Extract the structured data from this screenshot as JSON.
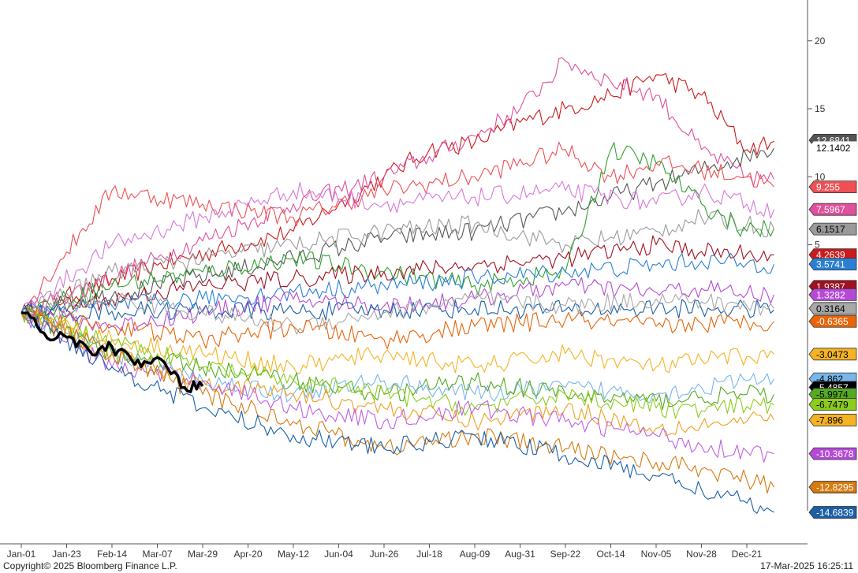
{
  "footer": {
    "copyright": "Copyright© 2025 Bloomberg Finance L.P.",
    "timestamp": "17-Mar-2025 16:25:11"
  },
  "colors": {
    "axis": "#555555",
    "highlight": "#000000"
  },
  "chart_data": {
    "type": "line",
    "title": "",
    "xlabel": "",
    "ylabel": "",
    "ylim": [
      -17,
      23
    ],
    "x_ticks": [
      "Jan-01",
      "Jan-23",
      "Feb-14",
      "Mar-07",
      "Mar-29",
      "Apr-20",
      "May-12",
      "Jun-04",
      "Jun-26",
      "Jul-18",
      "Aug-09",
      "Aug-31",
      "Sep-22",
      "Oct-14",
      "Nov-05",
      "Nov-28",
      "Dec-21"
    ],
    "y_ticks": [
      20,
      15,
      10,
      5
    ],
    "y_axis_side": "right",
    "grid": false,
    "legend": "none",
    "end_labels": [
      {
        "text": "12.6841",
        "value": 12.6841,
        "color": "#555555",
        "text_color": "#ffffff"
      },
      {
        "text": "12.1402",
        "value": 12.1402,
        "color": "#ffffff",
        "text_color": "#000000"
      },
      {
        "text": "9.255",
        "value": 9.255,
        "color": "#ef5055",
        "text_color": "#ffffff"
      },
      {
        "text": "7.5967",
        "value": 7.5967,
        "color": "#e0509c",
        "text_color": "#ffffff"
      },
      {
        "text": "6.1517",
        "value": 6.1517,
        "color": "#9a9a9a",
        "text_color": "#000000"
      },
      {
        "text": "4.2639",
        "value": 4.2639,
        "color": "#cc1a1a",
        "text_color": "#ffffff"
      },
      {
        "text": "3.5741",
        "value": 3.5741,
        "color": "#2a7fd4",
        "text_color": "#ffffff"
      },
      {
        "text": "1.9387",
        "value": 1.9387,
        "color": "#a01020",
        "text_color": "#ffffff"
      },
      {
        "text": "1.3282",
        "value": 1.3282,
        "color": "#b54ad6",
        "text_color": "#ffffff"
      },
      {
        "text": "0.3164",
        "value": 0.3164,
        "color": "#a8a8a8",
        "text_color": "#000000"
      },
      {
        "text": "-0.6365",
        "value": -0.6365,
        "color": "#e8650a",
        "text_color": "#ffffff"
      },
      {
        "text": "-3.0473",
        "value": -3.0473,
        "color": "#f5b324",
        "text_color": "#000000"
      },
      {
        "text": "-4.862",
        "value": -4.862,
        "color": "#78b6ea",
        "text_color": "#000000"
      },
      {
        "text": "-5.4857",
        "value": -5.4857,
        "color": "#000000",
        "text_color": "#ffffff"
      },
      {
        "text": "-5.9974",
        "value": -5.9974,
        "color": "#55aa22",
        "text_color": "#000000"
      },
      {
        "text": "-6.7479",
        "value": -6.7479,
        "color": "#8ccc1c",
        "text_color": "#000000"
      },
      {
        "text": "-7.896",
        "value": -7.896,
        "color": "#f5b324",
        "text_color": "#000000"
      },
      {
        "text": "-10.3678",
        "value": -10.3678,
        "color": "#b54ad6",
        "text_color": "#ffffff"
      },
      {
        "text": "-12.8295",
        "value": -12.8295,
        "color": "#d47a10",
        "text_color": "#ffffff"
      },
      {
        "text": "-14.6839",
        "value": -14.6839,
        "color": "#1a5fa8",
        "text_color": "#ffffff"
      }
    ],
    "series": [
      {
        "color": "#cc1a1a",
        "points": [
          [
            0,
            0
          ],
          [
            3,
            3.5
          ],
          [
            6,
            6
          ],
          [
            7,
            8
          ],
          [
            8,
            10
          ],
          [
            9,
            12
          ],
          [
            10,
            12.5
          ],
          [
            11,
            14
          ],
          [
            12,
            15
          ],
          [
            13,
            16
          ],
          [
            14,
            17.5
          ],
          [
            15,
            16
          ],
          [
            16,
            12
          ],
          [
            16.6,
            12.6
          ]
        ]
      },
      {
        "color": "#e0509c",
        "points": [
          [
            0,
            0
          ],
          [
            3,
            4
          ],
          [
            6,
            8
          ],
          [
            8,
            10
          ],
          [
            9,
            11.5
          ],
          [
            10,
            13
          ],
          [
            11,
            15
          ],
          [
            12,
            18.5
          ],
          [
            13,
            17
          ],
          [
            14,
            16
          ],
          [
            15,
            12
          ],
          [
            16,
            10
          ],
          [
            16.6,
            9.8
          ]
        ]
      },
      {
        "color": "#555555",
        "points": [
          [
            0,
            0
          ],
          [
            3,
            2
          ],
          [
            6,
            4
          ],
          [
            8,
            5.5
          ],
          [
            10,
            6
          ],
          [
            12,
            7.5
          ],
          [
            13,
            8.5
          ],
          [
            14,
            9.5
          ],
          [
            15,
            10.5
          ],
          [
            16,
            11.5
          ],
          [
            16.6,
            12.1
          ]
        ]
      },
      {
        "color": "#ef5055",
        "points": [
          [
            0,
            0
          ],
          [
            2,
            9
          ],
          [
            4,
            8
          ],
          [
            6,
            7
          ],
          [
            8,
            9
          ],
          [
            10,
            10
          ],
          [
            12,
            12
          ],
          [
            13,
            10
          ],
          [
            14,
            11
          ],
          [
            15,
            10.5
          ],
          [
            16,
            10
          ],
          [
            16.6,
            9.25
          ]
        ]
      },
      {
        "color": "#d878d8",
        "points": [
          [
            0,
            0
          ],
          [
            2,
            5
          ],
          [
            4,
            7
          ],
          [
            6,
            9
          ],
          [
            8,
            8
          ],
          [
            10,
            8.5
          ],
          [
            12,
            9
          ],
          [
            14,
            8
          ],
          [
            15,
            9
          ],
          [
            16,
            8
          ],
          [
            16.6,
            7.6
          ]
        ]
      },
      {
        "color": "#9a9a9a",
        "points": [
          [
            0,
            0
          ],
          [
            2,
            3
          ],
          [
            4,
            4
          ],
          [
            6,
            5
          ],
          [
            8,
            6
          ],
          [
            10,
            6.5
          ],
          [
            12,
            5
          ],
          [
            14,
            6
          ],
          [
            15,
            7
          ],
          [
            16,
            6.5
          ],
          [
            16.6,
            6.15
          ]
        ]
      },
      {
        "color": "#30a030",
        "points": [
          [
            0,
            0
          ],
          [
            2,
            2
          ],
          [
            4,
            3
          ],
          [
            6,
            4
          ],
          [
            8,
            3
          ],
          [
            10,
            2
          ],
          [
            12,
            3
          ],
          [
            13,
            12
          ],
          [
            14,
            11
          ],
          [
            15,
            8
          ],
          [
            16,
            6
          ],
          [
            16.6,
            6.2
          ]
        ]
      },
      {
        "color": "#a01020",
        "points": [
          [
            0,
            0
          ],
          [
            2,
            1
          ],
          [
            4,
            2
          ],
          [
            6,
            2.5
          ],
          [
            8,
            3
          ],
          [
            10,
            3.5
          ],
          [
            12,
            4
          ],
          [
            14,
            5
          ],
          [
            15,
            4.5
          ],
          [
            16,
            4.3
          ],
          [
            16.6,
            4.26
          ]
        ]
      },
      {
        "color": "#2a7fd4",
        "points": [
          [
            0,
            0
          ],
          [
            2,
            0.5
          ],
          [
            4,
            1
          ],
          [
            6,
            1.5
          ],
          [
            8,
            2
          ],
          [
            10,
            2.5
          ],
          [
            12,
            3
          ],
          [
            14,
            3.5
          ],
          [
            15,
            3.8
          ],
          [
            16,
            3.6
          ],
          [
            16.6,
            3.57
          ]
        ]
      },
      {
        "color": "#b54ad6",
        "points": [
          [
            0,
            0
          ],
          [
            2,
            -1
          ],
          [
            4,
            0
          ],
          [
            6,
            1
          ],
          [
            8,
            0.5
          ],
          [
            10,
            1
          ],
          [
            12,
            2
          ],
          [
            14,
            1.5
          ],
          [
            15,
            1.8
          ],
          [
            16,
            1.4
          ],
          [
            16.6,
            1.33
          ]
        ]
      },
      {
        "color": "#1a5fa8",
        "points": [
          [
            0,
            0
          ],
          [
            2,
            0.1
          ],
          [
            4,
            0.2
          ],
          [
            6,
            0.1
          ],
          [
            8,
            0.2
          ],
          [
            10,
            0.3
          ],
          [
            12,
            0.2
          ],
          [
            14,
            0.3
          ],
          [
            15,
            0.3
          ],
          [
            16,
            0.25
          ],
          [
            16.6,
            0.2
          ]
        ]
      },
      {
        "color": "#a8a8a8",
        "points": [
          [
            0,
            0
          ],
          [
            2,
            1
          ],
          [
            4,
            0
          ],
          [
            6,
            -1
          ],
          [
            8,
            0
          ],
          [
            10,
            1
          ],
          [
            12,
            0.5
          ],
          [
            14,
            1
          ],
          [
            15,
            0.8
          ],
          [
            16,
            0.5
          ],
          [
            16.6,
            0.32
          ]
        ]
      },
      {
        "color": "#e8650a",
        "points": [
          [
            0,
            0
          ],
          [
            2,
            -1
          ],
          [
            4,
            -2
          ],
          [
            6,
            -1
          ],
          [
            8,
            -2
          ],
          [
            10,
            -1
          ],
          [
            12,
            -0.5
          ],
          [
            14,
            -1
          ],
          [
            15,
            -0.8
          ],
          [
            16,
            -0.7
          ],
          [
            16.6,
            -0.64
          ]
        ]
      },
      {
        "color": "#f5b324",
        "points": [
          [
            0,
            0
          ],
          [
            2,
            -2
          ],
          [
            4,
            -3
          ],
          [
            6,
            -4
          ],
          [
            8,
            -3
          ],
          [
            10,
            -4
          ],
          [
            12,
            -3
          ],
          [
            14,
            -4
          ],
          [
            15,
            -3.5
          ],
          [
            16,
            -3.2
          ],
          [
            16.6,
            -3.05
          ]
        ]
      },
      {
        "color": "#78b6ea",
        "points": [
          [
            0,
            0
          ],
          [
            2,
            -3
          ],
          [
            4,
            -5
          ],
          [
            6,
            -6
          ],
          [
            8,
            -5
          ],
          [
            10,
            -6
          ],
          [
            12,
            -5.5
          ],
          [
            14,
            -6
          ],
          [
            15,
            -5.5
          ],
          [
            16,
            -5
          ],
          [
            16.6,
            -4.86
          ]
        ]
      },
      {
        "color": "#55aa22",
        "points": [
          [
            0,
            0
          ],
          [
            2,
            -3
          ],
          [
            4,
            -4
          ],
          [
            6,
            -5
          ],
          [
            8,
            -6
          ],
          [
            10,
            -5
          ],
          [
            12,
            -6
          ],
          [
            14,
            -6.5
          ],
          [
            15,
            -6.2
          ],
          [
            16,
            -6
          ],
          [
            16.6,
            -6.0
          ]
        ]
      },
      {
        "color": "#8ccc1c",
        "points": [
          [
            0,
            0
          ],
          [
            2,
            -2
          ],
          [
            4,
            -4
          ],
          [
            6,
            -5
          ],
          [
            8,
            -6
          ],
          [
            10,
            -7
          ],
          [
            12,
            -6
          ],
          [
            14,
            -7
          ],
          [
            15,
            -7.2
          ],
          [
            16,
            -6.9
          ],
          [
            16.6,
            -6.75
          ]
        ]
      },
      {
        "color": "#f0a020",
        "points": [
          [
            0,
            0
          ],
          [
            2,
            -3
          ],
          [
            4,
            -5
          ],
          [
            6,
            -6
          ],
          [
            8,
            -7
          ],
          [
            10,
            -8
          ],
          [
            12,
            -7
          ],
          [
            14,
            -8.5
          ],
          [
            15,
            -8.2
          ],
          [
            16,
            -8
          ],
          [
            16.6,
            -7.9
          ]
        ]
      },
      {
        "color": "#c060e0",
        "points": [
          [
            0,
            0
          ],
          [
            2,
            -4
          ],
          [
            4,
            -5
          ],
          [
            6,
            -7
          ],
          [
            8,
            -8
          ],
          [
            10,
            -7
          ],
          [
            12,
            -8
          ],
          [
            14,
            -9
          ],
          [
            15,
            -9.8
          ],
          [
            16,
            -10.2
          ],
          [
            16.6,
            -10.37
          ]
        ]
      },
      {
        "color": "#d47a10",
        "points": [
          [
            0,
            0
          ],
          [
            2,
            -3
          ],
          [
            4,
            -6
          ],
          [
            6,
            -8
          ],
          [
            8,
            -10
          ],
          [
            10,
            -9
          ],
          [
            12,
            -10
          ],
          [
            14,
            -11
          ],
          [
            15,
            -11.5
          ],
          [
            16,
            -12.3
          ],
          [
            16.6,
            -12.83
          ]
        ]
      },
      {
        "color": "#1a5fa8",
        "points": [
          [
            0,
            0
          ],
          [
            2,
            -4
          ],
          [
            4,
            -7
          ],
          [
            6,
            -9
          ],
          [
            8,
            -10
          ],
          [
            10,
            -9
          ],
          [
            12,
            -10.5
          ],
          [
            14,
            -12
          ],
          [
            15,
            -13
          ],
          [
            16,
            -14
          ],
          [
            16.6,
            -14.68
          ]
        ]
      },
      {
        "color": "#000000",
        "highlight": true,
        "points": [
          [
            0,
            0
          ],
          [
            0.5,
            -1.5
          ],
          [
            1,
            -1.8
          ],
          [
            1.5,
            -2.8
          ],
          [
            2,
            -2.5
          ],
          [
            2.5,
            -3.8
          ],
          [
            3,
            -3.3
          ],
          [
            3.3,
            -4.5
          ],
          [
            3.6,
            -5.5
          ],
          [
            4,
            -5.4
          ]
        ]
      }
    ]
  }
}
